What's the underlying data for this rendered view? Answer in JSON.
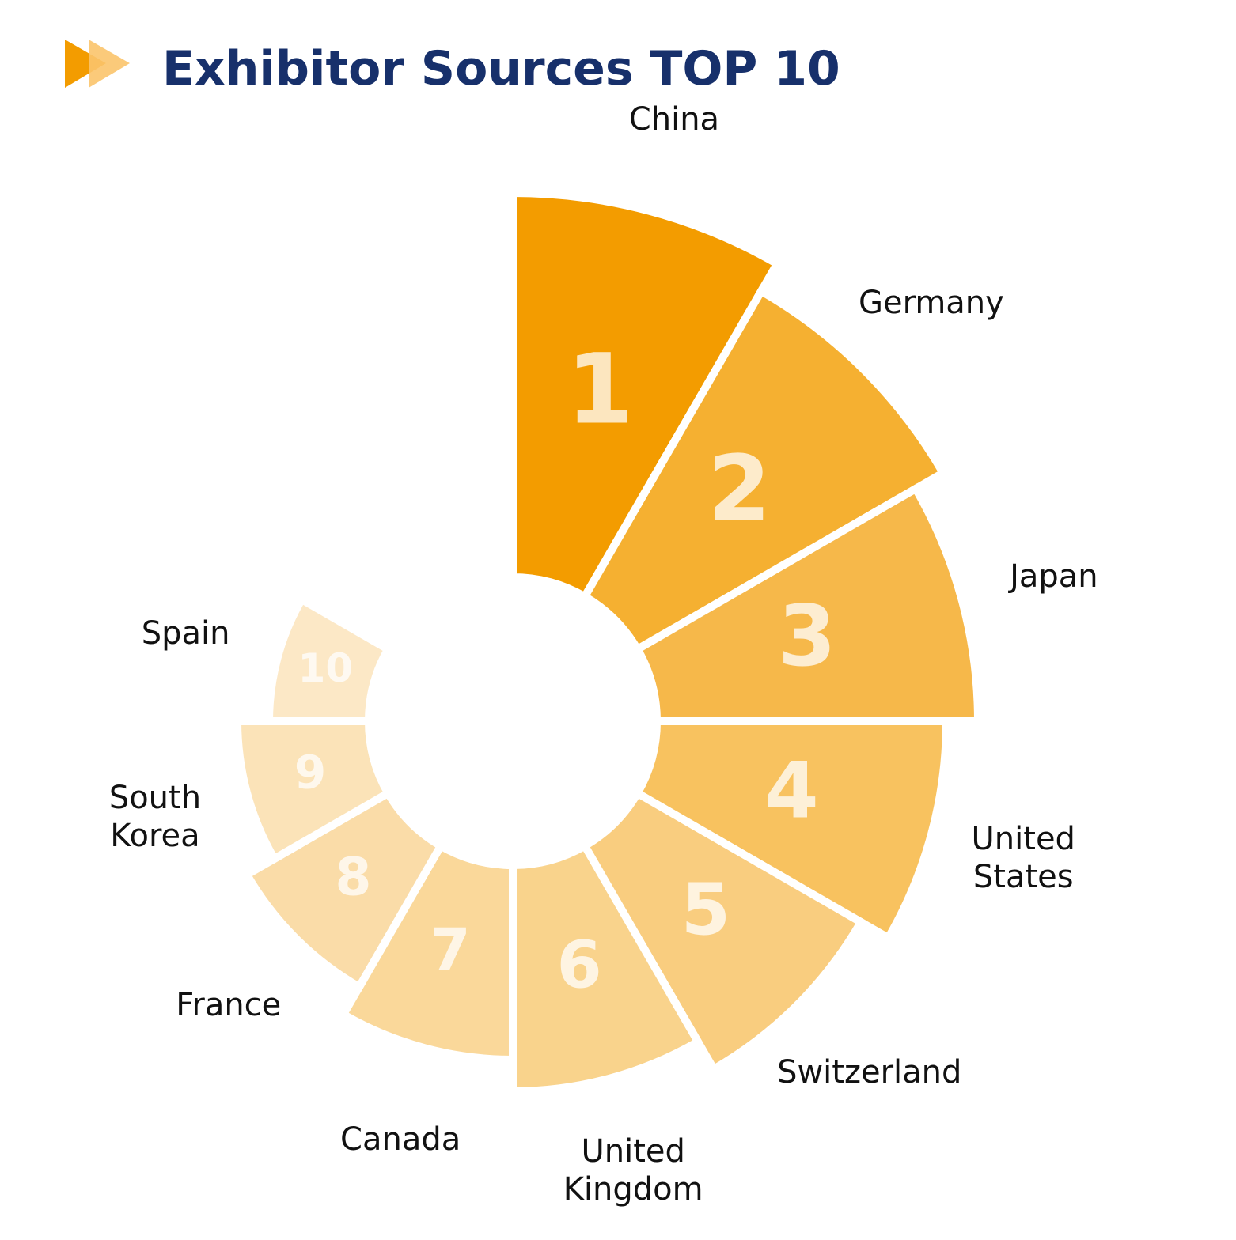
{
  "chart_data": {
    "type": "rose",
    "title": "Exhibitor Sources TOP 10",
    "categories": [
      "China",
      "Germany",
      "Japan",
      "United States",
      "Switzerland",
      "United Kingdom",
      "Canada",
      "France",
      "South Korea",
      "Spain"
    ],
    "values": [
      1,
      2,
      3,
      4,
      5,
      6,
      7,
      8,
      9,
      10
    ],
    "colors": [
      "#f39c00",
      "#f5b031",
      "#f6b84a",
      "#f8c25f",
      "#f9cd7f",
      "#f9d38c",
      "#fad89a",
      "#fadca8",
      "#fbe3b8",
      "#fce8c6"
    ]
  }
}
